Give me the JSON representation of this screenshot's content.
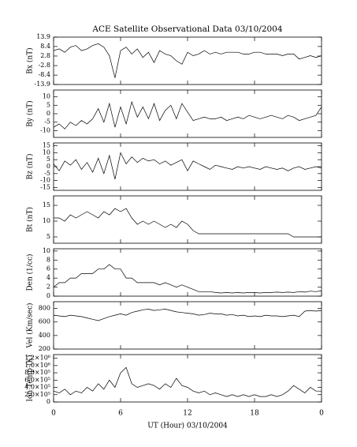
{
  "title": "ACE Satellite Observational Data   03/10/2004",
  "chart_data": [
    {
      "type": "line",
      "ylabel": "Bx (nT)",
      "ylim": [
        -13.9,
        13.9
      ],
      "yticks": [
        13.9,
        8.4,
        2.8,
        -2.8,
        -8.4,
        -13.9
      ],
      "xlim": [
        0,
        24
      ],
      "xticks": [
        0,
        6,
        12,
        18,
        24
      ],
      "x": [
        0,
        0.5,
        1,
        1.5,
        2,
        2.5,
        3,
        3.5,
        4,
        4.5,
        5,
        5.5,
        6,
        6.5,
        7,
        7.5,
        8,
        8.5,
        9,
        9.5,
        10,
        10.5,
        11,
        11.5,
        12,
        12.5,
        13,
        13.5,
        14,
        14.5,
        15,
        15.5,
        16,
        16.5,
        17,
        17.5,
        18,
        18.5,
        19,
        19.5,
        20,
        20.5,
        21,
        21.5,
        22,
        22.5,
        23,
        23.5,
        24
      ],
      "series": [
        {
          "color": "#000000",
          "values": [
            6,
            7,
            5,
            8,
            9,
            6,
            7,
            9,
            10,
            8,
            3,
            -10,
            6,
            8,
            4,
            7,
            2,
            5,
            -1,
            6,
            4,
            3,
            0,
            -2,
            5,
            3,
            4,
            6,
            4,
            5,
            4,
            5,
            5,
            5,
            4,
            4,
            5,
            5,
            4,
            4,
            4,
            3,
            4,
            4,
            1,
            2,
            3,
            2,
            3
          ]
        }
      ]
    },
    {
      "type": "line",
      "ylabel": "By (nT)",
      "ylim": [
        -14,
        14
      ],
      "yticks": [
        10,
        5,
        0,
        -5,
        -10
      ],
      "xlim": [
        0,
        24
      ],
      "xticks": [
        0,
        6,
        12,
        18,
        24
      ],
      "x": [
        0,
        0.5,
        1,
        1.5,
        2,
        2.5,
        3,
        3.5,
        4,
        4.5,
        5,
        5.5,
        6,
        6.5,
        7,
        7.5,
        8,
        8.5,
        9,
        9.5,
        10,
        10.5,
        11,
        11.5,
        12,
        12.5,
        13,
        13.5,
        14,
        14.5,
        15,
        15.5,
        16,
        16.5,
        17,
        17.5,
        18,
        18.5,
        19,
        19.5,
        20,
        20.5,
        21,
        21.5,
        22,
        22.5,
        23,
        23.5,
        24
      ],
      "series": [
        {
          "color": "#000000",
          "values": [
            -8,
            -6,
            -9,
            -5,
            -7,
            -4,
            -6,
            -3,
            3,
            -5,
            6,
            -8,
            4,
            -6,
            7,
            -2,
            4,
            -3,
            6,
            -4,
            2,
            5,
            -3,
            6,
            1,
            -4,
            -3,
            -2,
            -3,
            -3,
            -2,
            -4,
            -3,
            -2,
            -3,
            -1,
            -2,
            -3,
            -2,
            -1,
            -2,
            -3,
            -1,
            -2,
            -4,
            -3,
            -2,
            -1,
            4
          ]
        }
      ]
    },
    {
      "type": "line",
      "ylabel": "Bz (nT)",
      "ylim": [
        -17,
        17
      ],
      "yticks": [
        15,
        10,
        5,
        0,
        -5,
        -10,
        -15
      ],
      "xlim": [
        0,
        24
      ],
      "xticks": [
        0,
        6,
        12,
        18,
        24
      ],
      "x": [
        0,
        0.5,
        1,
        1.5,
        2,
        2.5,
        3,
        3.5,
        4,
        4.5,
        5,
        5.5,
        6,
        6.5,
        7,
        7.5,
        8,
        8.5,
        9,
        9.5,
        10,
        10.5,
        11,
        11.5,
        12,
        12.5,
        13,
        13.5,
        14,
        14.5,
        15,
        15.5,
        16,
        16.5,
        17,
        17.5,
        18,
        18.5,
        19,
        19.5,
        20,
        20.5,
        21,
        21.5,
        22,
        22.5,
        23,
        23.5,
        24
      ],
      "series": [
        {
          "color": "#000000",
          "values": [
            2,
            -3,
            4,
            1,
            5,
            -2,
            3,
            -4,
            6,
            -5,
            8,
            -9,
            10,
            2,
            7,
            3,
            6,
            4,
            5,
            2,
            4,
            1,
            3,
            5,
            -3,
            4,
            2,
            0,
            -2,
            1,
            0,
            -1,
            -2,
            0,
            -1,
            0,
            -1,
            -2,
            0,
            -1,
            -2,
            -1,
            -3,
            -1,
            0,
            -2,
            -1,
            0,
            -1
          ]
        }
      ]
    },
    {
      "type": "line",
      "ylabel": "Bt (nT)",
      "ylim": [
        3,
        18
      ],
      "yticks": [
        15,
        10,
        5
      ],
      "xlim": [
        0,
        24
      ],
      "xticks": [
        0,
        6,
        12,
        18,
        24
      ],
      "x": [
        0,
        0.5,
        1,
        1.5,
        2,
        2.5,
        3,
        3.5,
        4,
        4.5,
        5,
        5.5,
        6,
        6.5,
        7,
        7.5,
        8,
        8.5,
        9,
        9.5,
        10,
        10.5,
        11,
        11.5,
        12,
        12.5,
        13,
        13.5,
        14,
        14.5,
        15,
        15.5,
        16,
        16.5,
        17,
        17.5,
        18,
        18.5,
        19,
        19.5,
        20,
        20.5,
        21,
        21.5,
        22,
        22.5,
        23,
        23.5,
        24
      ],
      "series": [
        {
          "color": "#000000",
          "values": [
            11,
            11,
            10,
            12,
            11,
            12,
            13,
            12,
            11,
            13,
            12,
            14,
            13,
            14,
            11,
            9,
            10,
            9,
            10,
            9,
            8,
            9,
            8,
            10,
            9,
            7,
            6,
            6,
            6,
            6,
            6,
            6,
            6,
            6,
            6,
            6,
            6,
            6,
            6,
            6,
            6,
            6,
            6,
            5,
            5,
            5,
            5,
            5,
            5
          ]
        }
      ]
    },
    {
      "type": "line",
      "ylabel": "Den (1/cc)",
      "ylim": [
        0,
        10.5
      ],
      "yticks": [
        10,
        8,
        6,
        4,
        2,
        0
      ],
      "xlim": [
        0,
        24
      ],
      "xticks": [
        0,
        6,
        12,
        18,
        24
      ],
      "x": [
        0,
        0.5,
        1,
        1.5,
        2,
        2.5,
        3,
        3.5,
        4,
        4.5,
        5,
        5.5,
        6,
        6.5,
        7,
        7.5,
        8,
        8.5,
        9,
        9.5,
        10,
        10.5,
        11,
        11.5,
        12,
        12.5,
        13,
        13.5,
        14,
        14.5,
        15,
        15.5,
        16,
        16.5,
        17,
        17.5,
        18,
        18.5,
        19,
        19.5,
        20,
        20.5,
        21,
        21.5,
        22,
        22.5,
        23,
        23.5,
        24
      ],
      "series": [
        {
          "color": "#000000",
          "values": [
            2,
            3,
            3,
            4,
            4,
            5,
            5,
            5,
            6,
            6,
            7,
            6,
            6,
            4,
            4,
            3,
            3,
            3,
            3,
            2.5,
            3,
            2.5,
            2,
            2.5,
            2,
            1.5,
            1,
            1,
            1,
            0.8,
            0.7,
            0.8,
            0.7,
            0.8,
            0.7,
            0.8,
            0.8,
            0.7,
            0.8,
            0.8,
            0.9,
            0.8,
            0.9,
            0.8,
            1,
            0.9,
            1.1,
            1,
            1.2
          ]
        }
      ]
    },
    {
      "type": "line",
      "ylabel": "Vel (Km/sec)",
      "ylim": [
        200,
        900
      ],
      "yticks": [
        800,
        600,
        400,
        200
      ],
      "xlim": [
        0,
        24
      ],
      "xticks": [
        0,
        6,
        12,
        18,
        24
      ],
      "x": [
        0,
        0.5,
        1,
        1.5,
        2,
        2.5,
        3,
        3.5,
        4,
        4.5,
        5,
        5.5,
        6,
        6.5,
        7,
        7.5,
        8,
        8.5,
        9,
        9.5,
        10,
        10.5,
        11,
        11.5,
        12,
        12.5,
        13,
        13.5,
        14,
        14.5,
        15,
        15.5,
        16,
        16.5,
        17,
        17.5,
        18,
        18.5,
        19,
        19.5,
        20,
        20.5,
        21,
        21.5,
        22,
        22.5,
        23,
        23.5,
        24
      ],
      "series": [
        {
          "color": "#000000",
          "values": [
            700,
            690,
            680,
            700,
            690,
            680,
            660,
            640,
            620,
            650,
            680,
            700,
            720,
            700,
            740,
            760,
            780,
            790,
            770,
            780,
            790,
            770,
            750,
            740,
            730,
            720,
            700,
            710,
            730,
            720,
            720,
            700,
            710,
            690,
            700,
            680,
            690,
            680,
            700,
            690,
            690,
            680,
            690,
            700,
            680,
            760,
            770,
            760,
            770
          ]
        }
      ]
    },
    {
      "type": "line",
      "ylabel": "Ion Temp (K)",
      "ylim": [
        0,
        1300000
      ],
      "yticks": [
        {
          "value": 1200000,
          "label": "1.2×10⁶"
        },
        {
          "value": 1000000,
          "label": "1.0×10⁶"
        },
        {
          "value": 800000,
          "label": "8.0×10⁵"
        },
        {
          "value": 600000,
          "label": "6.0×10⁵"
        },
        {
          "value": 400000,
          "label": "4.0×10⁵"
        },
        {
          "value": 200000,
          "label": "2.0×10⁵"
        },
        0
      ],
      "xlim": [
        0,
        24
      ],
      "xticks": [
        0,
        6,
        12,
        18,
        {
          "value": 24,
          "label": "0"
        }
      ],
      "xlabel": "UT (Hour)   03/10/2004",
      "x": [
        0,
        0.5,
        1,
        1.5,
        2,
        2.5,
        3,
        3.5,
        4,
        4.5,
        5,
        5.5,
        6,
        6.5,
        7,
        7.5,
        8,
        8.5,
        9,
        9.5,
        10,
        10.5,
        11,
        11.5,
        12,
        12.5,
        13,
        13.5,
        14,
        14.5,
        15,
        15.5,
        16,
        16.5,
        17,
        17.5,
        18,
        18.5,
        19,
        19.5,
        20,
        20.5,
        21,
        21.5,
        22,
        22.5,
        23,
        23.5,
        24
      ],
      "series": [
        {
          "color": "#000000",
          "values": [
            300000,
            250000,
            350000,
            200000,
            300000,
            250000,
            400000,
            300000,
            500000,
            350000,
            600000,
            400000,
            800000,
            950000,
            500000,
            400000,
            450000,
            500000,
            450000,
            350000,
            500000,
            400000,
            650000,
            450000,
            400000,
            300000,
            250000,
            300000,
            200000,
            250000,
            200000,
            150000,
            200000,
            150000,
            200000,
            150000,
            200000,
            150000,
            150000,
            200000,
            150000,
            200000,
            300000,
            450000,
            350000,
            250000,
            400000,
            300000,
            300000
          ]
        }
      ]
    }
  ]
}
